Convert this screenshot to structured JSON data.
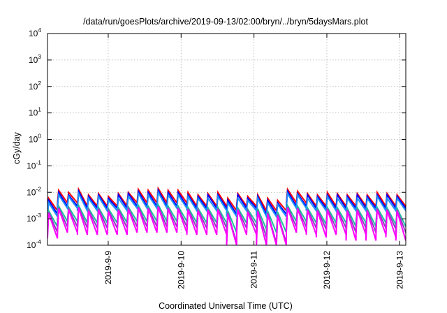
{
  "chart_data": {
    "type": "line",
    "title": "/data/run/goesPlots/archive/2019-09-13/02:00/bryn/../bryn/5daysMars.plot",
    "xlabel": "Coordinated Universal Time (UTC)",
    "ylabel": "cGy/day",
    "y_scale": "log",
    "ylim": [
      0.0001,
      10000
    ],
    "xlim": [
      "2019-09-08T04:00",
      "2019-09-13T02:00"
    ],
    "grid": true,
    "legend": "none",
    "y_ticks": [
      {
        "value": 0.0001,
        "base": "10",
        "exp": "-4"
      },
      {
        "value": 0.001,
        "base": "10",
        "exp": "-3"
      },
      {
        "value": 0.01,
        "base": "10",
        "exp": "-2"
      },
      {
        "value": 0.1,
        "base": "10",
        "exp": "-1"
      },
      {
        "value": 1,
        "base": "10",
        "exp": "0"
      },
      {
        "value": 10,
        "base": "10",
        "exp": "1"
      },
      {
        "value": 100,
        "base": "10",
        "exp": "2"
      },
      {
        "value": 1000,
        "base": "10",
        "exp": "3"
      },
      {
        "value": 10000,
        "base": "10",
        "exp": "4"
      }
    ],
    "x_ticks": [
      {
        "label": "2019-9-9",
        "date": "2019-09-09T00:00"
      },
      {
        "label": "2019-9-10",
        "date": "2019-09-10T00:00"
      },
      {
        "label": "2019-9-11",
        "date": "2019-09-11T00:00"
      },
      {
        "label": "2019-9-12",
        "date": "2019-09-12T00:00"
      },
      {
        "label": "2019-9-13",
        "date": "2019-09-13T00:00"
      }
    ],
    "series": [
      {
        "color": "#ff0000",
        "peaks": [
          0.006,
          0.012,
          0.01,
          0.013,
          0.008,
          0.009,
          0.007,
          0.009,
          0.01,
          0.013,
          0.012,
          0.014,
          0.012,
          0.012,
          0.01,
          0.008,
          0.009,
          0.01,
          0.006,
          0.009,
          0.007,
          0.008,
          0.006,
          0.005,
          0.013,
          0.011,
          0.009,
          0.008,
          0.01,
          0.009,
          0.008,
          0.009,
          0.008,
          0.01,
          0.009,
          0.008
        ],
        "troughs": [
          0.002,
          0.004,
          0.004,
          0.003,
          0.003,
          0.003,
          0.003,
          0.003,
          0.004,
          0.004,
          0.004,
          0.004,
          0.004,
          0.004,
          0.003,
          0.003,
          0.003,
          0.003,
          0.002,
          0.003,
          0.003,
          0.002,
          0.002,
          0.002,
          0.004,
          0.004,
          0.003,
          0.003,
          0.003,
          0.003,
          0.003,
          0.003,
          0.003,
          0.003,
          0.003,
          0.003
        ]
      },
      {
        "color": "#0000ff",
        "peaks": [
          0.005,
          0.01,
          0.008,
          0.011,
          0.007,
          0.008,
          0.006,
          0.008,
          0.009,
          0.011,
          0.01,
          0.012,
          0.01,
          0.01,
          0.008,
          0.007,
          0.008,
          0.008,
          0.005,
          0.008,
          0.006,
          0.007,
          0.005,
          0.004,
          0.011,
          0.009,
          0.008,
          0.007,
          0.008,
          0.008,
          0.007,
          0.008,
          0.007,
          0.008,
          0.008,
          0.007
        ],
        "troughs": [
          0.0015,
          0.003,
          0.003,
          0.0025,
          0.0025,
          0.0025,
          0.0025,
          0.0025,
          0.003,
          0.003,
          0.003,
          0.003,
          0.003,
          0.003,
          0.0025,
          0.0025,
          0.0025,
          0.0025,
          0.0015,
          0.0025,
          0.0025,
          0.0015,
          0.0015,
          0.0015,
          0.003,
          0.003,
          0.0025,
          0.0025,
          0.0025,
          0.0025,
          0.0025,
          0.0025,
          0.0025,
          0.0025,
          0.0025,
          0.0025
        ]
      },
      {
        "color": "#1e90ff",
        "peaks": [
          0.004,
          0.008,
          0.007,
          0.009,
          0.006,
          0.007,
          0.005,
          0.006,
          0.007,
          0.009,
          0.008,
          0.01,
          0.008,
          0.008,
          0.007,
          0.006,
          0.006,
          0.007,
          0.004,
          0.006,
          0.005,
          0.006,
          0.004,
          0.0035,
          0.009,
          0.008,
          0.006,
          0.006,
          0.007,
          0.006,
          0.006,
          0.006,
          0.006,
          0.007,
          0.006,
          0.006
        ],
        "troughs": [
          0.0012,
          0.0025,
          0.0025,
          0.002,
          0.002,
          0.002,
          0.002,
          0.002,
          0.0025,
          0.0025,
          0.0025,
          0.0025,
          0.0025,
          0.0025,
          0.002,
          0.002,
          0.002,
          0.002,
          0.0012,
          0.002,
          0.002,
          0.0012,
          0.0012,
          0.0012,
          0.0025,
          0.0025,
          0.002,
          0.002,
          0.002,
          0.002,
          0.002,
          0.002,
          0.002,
          0.002,
          0.002,
          0.002
        ]
      },
      {
        "color": "#20c0a0",
        "peaks": [
          0.002,
          0.003,
          0.0028,
          0.0032,
          0.0025,
          0.0027,
          0.0024,
          0.0026,
          0.0028,
          0.0032,
          0.003,
          0.0034,
          0.003,
          0.003,
          0.0027,
          0.0025,
          0.0026,
          0.0027,
          0.002,
          0.0026,
          0.0023,
          0.0024,
          0.002,
          0.0018,
          0.0032,
          0.003,
          0.0026,
          0.0025,
          0.0027,
          0.0026,
          0.0025,
          0.0026,
          0.0025,
          0.0027,
          0.0026,
          0.0025
        ],
        "troughs": [
          0.0005,
          0.0008,
          0.0008,
          0.0007,
          0.0007,
          0.0007,
          0.0007,
          0.0007,
          0.0008,
          0.0008,
          0.0008,
          0.0008,
          0.0008,
          0.0008,
          0.0007,
          0.0007,
          0.0007,
          0.0007,
          0.0003,
          0.0007,
          0.0007,
          0.0004,
          0.0003,
          0.0003,
          0.0008,
          0.0008,
          0.0007,
          0.0006,
          0.0007,
          0.0007,
          0.0005,
          0.0007,
          0.0005,
          0.0007,
          0.0006,
          0.0005
        ]
      },
      {
        "color": "#9040c0",
        "peaks": [
          0.0018,
          0.0026,
          0.0024,
          0.0028,
          0.0022,
          0.0024,
          0.0021,
          0.0023,
          0.0025,
          0.0028,
          0.0026,
          0.003,
          0.0026,
          0.0026,
          0.0024,
          0.0022,
          0.0023,
          0.0024,
          0.0017,
          0.0023,
          0.002,
          0.0021,
          0.0017,
          0.0015,
          0.0028,
          0.0026,
          0.0023,
          0.0022,
          0.0024,
          0.0023,
          0.0022,
          0.0023,
          0.0022,
          0.0024,
          0.0023,
          0.0022
        ],
        "troughs": [
          0.0003,
          0.0005,
          0.0005,
          0.00045,
          0.00045,
          0.00045,
          0.00045,
          0.00045,
          0.0005,
          0.0005,
          0.0005,
          0.0005,
          0.0005,
          0.0005,
          0.00045,
          0.00045,
          0.00045,
          0.00045,
          0.00012,
          0.00045,
          0.00045,
          0.0002,
          0.00012,
          0.00012,
          0.0005,
          0.0005,
          0.00045,
          0.0004,
          0.00045,
          0.00045,
          0.0003,
          0.00045,
          0.0003,
          0.00045,
          0.0004,
          0.0003
        ]
      },
      {
        "color": "#ff00ff",
        "peaks": [
          0.0016,
          0.0024,
          0.0022,
          0.0026,
          0.002,
          0.0022,
          0.0019,
          0.0021,
          0.0023,
          0.0026,
          0.0024,
          0.0028,
          0.0024,
          0.0024,
          0.0022,
          0.002,
          0.0021,
          0.0022,
          0.0015,
          0.0021,
          0.0018,
          0.0019,
          0.0015,
          0.0013,
          0.0026,
          0.0024,
          0.0021,
          0.002,
          0.0022,
          0.0021,
          0.002,
          0.0021,
          0.002,
          0.0022,
          0.0021,
          0.002
        ],
        "troughs": [
          0.00018,
          0.0003,
          0.0003,
          0.00025,
          0.00025,
          0.00025,
          0.00025,
          0.00025,
          0.0003,
          0.0003,
          0.0003,
          0.0003,
          0.0003,
          0.0003,
          0.00025,
          0.00025,
          0.00025,
          0.00025,
          0.0001,
          0.00025,
          0.00025,
          0.0001,
          0.0001,
          0.0001,
          0.0003,
          0.0003,
          0.00025,
          0.0002,
          0.00025,
          0.00025,
          0.00015,
          0.00025,
          0.00015,
          0.00025,
          0.0002,
          0.00015
        ]
      }
    ]
  }
}
